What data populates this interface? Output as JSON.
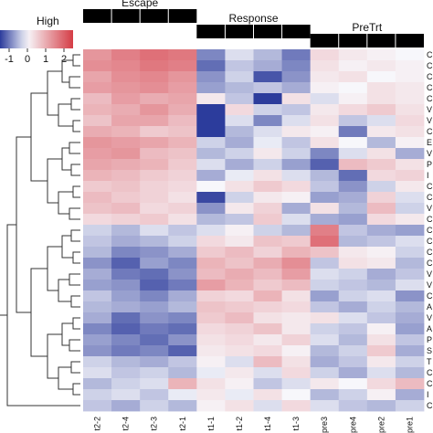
{
  "chart_data": {
    "type": "heatmap",
    "groups": [
      {
        "name": "Escape",
        "columns": [
          "t2-2",
          "t2-4",
          "t2-3",
          "t2-1"
        ]
      },
      {
        "name": "Response",
        "columns": [
          "t1-1",
          "t1-2",
          "t1-4",
          "t1-3"
        ]
      },
      {
        "name": "PreTrt",
        "columns": [
          "pre3",
          "pre4",
          "pre2",
          "pre1"
        ]
      }
    ],
    "columns": [
      "t2-2",
      "t2-4",
      "t2-3",
      "t2-1",
      "t1-1",
      "t1-2",
      "t1-4",
      "t1-3",
      "pre3",
      "pre4",
      "pre2",
      "pre1"
    ],
    "row_labels": [
      "C",
      "C",
      "C",
      "C",
      "C",
      "V",
      "V",
      "C",
      "E",
      "V",
      "P",
      "I",
      "C",
      "C",
      "V",
      "C",
      "C",
      "C",
      "C",
      "C",
      "V",
      "V",
      "C",
      "A",
      "V",
      "A",
      "P",
      "S",
      "T",
      "C",
      "C",
      "I",
      "C"
    ],
    "legend": {
      "low_label": "",
      "high_label": "High",
      "ticks": [
        "-1",
        "0",
        "1",
        "2"
      ],
      "range": [
        -1.5,
        2.5
      ],
      "colors": {
        "low": "#2c3c9c",
        "mid": "#f7f7fb",
        "high": "#d53c45"
      }
    },
    "values": [
      [
        1.3,
        1.6,
        1.8,
        1.7,
        -0.9,
        -0.2,
        -0.5,
        -1.0,
        0.4,
        0.2,
        0.1,
        0.0
      ],
      [
        1.4,
        1.5,
        1.7,
        1.6,
        -1.1,
        -0.4,
        -0.6,
        -0.9,
        0.3,
        0.1,
        0.2,
        0.1
      ],
      [
        1.1,
        1.4,
        1.5,
        1.3,
        -0.8,
        -0.3,
        -1.3,
        -0.8,
        0.2,
        0.3,
        0.0,
        0.1
      ],
      [
        1.2,
        1.3,
        1.4,
        1.2,
        -0.7,
        -0.5,
        -0.4,
        -0.6,
        0.1,
        0.0,
        0.3,
        0.2
      ],
      [
        0.8,
        1.2,
        1.0,
        1.1,
        0.2,
        -0.4,
        -1.8,
        0.3,
        -0.2,
        0.1,
        0.3,
        0.2
      ],
      [
        0.9,
        1.0,
        1.3,
        1.0,
        -1.7,
        0.4,
        -0.3,
        -0.4,
        0.2,
        0.4,
        0.6,
        0.3
      ],
      [
        0.7,
        1.1,
        1.1,
        0.8,
        -2.1,
        -0.2,
        -0.9,
        -0.2,
        0.3,
        -0.4,
        -0.2,
        0.4
      ],
      [
        1.0,
        0.9,
        0.6,
        0.7,
        -1.9,
        -0.5,
        -0.2,
        0.2,
        0.1,
        -1.0,
        0.2,
        0.3
      ],
      [
        1.3,
        1.2,
        1.1,
        0.9,
        -0.3,
        -0.6,
        -0.1,
        -0.4,
        0.3,
        0.0,
        -0.5,
        0.1
      ],
      [
        1.2,
        1.3,
        0.8,
        0.7,
        -0.5,
        -0.3,
        0.2,
        -0.3,
        -0.9,
        -0.2,
        0.3,
        -0.6
      ],
      [
        1.1,
        1.0,
        0.9,
        0.6,
        -0.2,
        -0.6,
        -0.3,
        -0.7,
        -1.2,
        0.8,
        0.6,
        0.3
      ],
      [
        0.9,
        0.8,
        0.6,
        0.5,
        -0.6,
        -0.1,
        0.3,
        -0.2,
        -0.5,
        -1.1,
        0.4,
        0.5
      ],
      [
        0.6,
        0.7,
        0.5,
        0.4,
        0.0,
        0.3,
        0.6,
        0.4,
        -0.4,
        -0.8,
        -0.3,
        0.2
      ],
      [
        0.8,
        0.6,
        0.5,
        0.3,
        -1.4,
        -0.3,
        0.2,
        0.1,
        -0.7,
        -0.6,
        0.5,
        -0.2
      ],
      [
        0.7,
        0.8,
        0.4,
        0.5,
        -0.8,
        0.2,
        0.5,
        -0.6,
        0.3,
        -0.5,
        0.8,
        -0.3
      ],
      [
        0.4,
        0.5,
        0.6,
        0.3,
        -0.5,
        -0.4,
        0.6,
        -0.2,
        -0.6,
        -0.7,
        0.4,
        0.2
      ],
      [
        -0.3,
        -0.5,
        -0.2,
        -0.4,
        -0.2,
        0.1,
        -0.3,
        -0.5,
        1.6,
        -0.4,
        -0.6,
        -0.7
      ],
      [
        -0.4,
        -0.6,
        -0.5,
        -0.3,
        0.4,
        0.2,
        0.7,
        0.6,
        1.8,
        -0.5,
        -0.4,
        -0.2
      ],
      [
        -0.5,
        -0.9,
        -0.8,
        -0.6,
        0.6,
        0.8,
        0.5,
        0.9,
        0.7,
        0.2,
        0.1,
        -0.3
      ],
      [
        -0.8,
        -1.2,
        -0.7,
        -0.9,
        0.9,
        0.7,
        1.0,
        1.4,
        -0.4,
        0.3,
        0.2,
        -0.5
      ],
      [
        -0.6,
        -1.0,
        -1.1,
        -0.8,
        0.8,
        1.0,
        0.8,
        1.2,
        -0.2,
        -0.3,
        -0.6,
        -0.4
      ],
      [
        -0.7,
        -0.8,
        -1.2,
        -1.0,
        1.2,
        0.9,
        0.6,
        0.8,
        -0.3,
        -0.4,
        -0.5,
        -0.2
      ],
      [
        -0.4,
        -0.7,
        -0.9,
        -0.6,
        0.5,
        0.4,
        0.9,
        0.3,
        -0.7,
        -0.3,
        -0.2,
        -0.8
      ],
      [
        -0.5,
        -0.6,
        -0.7,
        -0.5,
        0.7,
        0.6,
        0.5,
        0.4,
        -0.4,
        -0.6,
        -0.3,
        -0.5
      ],
      [
        -0.6,
        -1.1,
        -0.8,
        -0.9,
        0.6,
        0.8,
        0.3,
        0.2,
        0.3,
        -0.2,
        -0.4,
        -0.6
      ],
      [
        -0.9,
        -1.2,
        -1.0,
        -1.1,
        0.4,
        0.5,
        0.7,
        0.2,
        -0.3,
        -0.4,
        0.1,
        -0.7
      ],
      [
        -0.7,
        -0.9,
        -1.1,
        -0.8,
        0.3,
        0.4,
        0.2,
        0.5,
        -0.2,
        -0.5,
        0.3,
        -0.4
      ],
      [
        -0.8,
        -1.0,
        -0.9,
        -1.2,
        0.2,
        0.3,
        0.4,
        0.1,
        -0.5,
        -0.3,
        0.6,
        -0.6
      ],
      [
        -0.3,
        -0.5,
        -0.6,
        -0.4,
        0.1,
        -0.2,
        0.8,
        0.3,
        -0.6,
        -0.4,
        0.2,
        -0.3
      ],
      [
        -0.2,
        -0.4,
        -0.3,
        -0.5,
        -0.1,
        0.2,
        -0.2,
        0.4,
        -0.3,
        -0.6,
        -0.2,
        -0.5
      ],
      [
        -0.5,
        -0.3,
        -0.2,
        0.9,
        0.3,
        0.1,
        -0.4,
        -0.2,
        0.2,
        0.0,
        0.4,
        0.8
      ],
      [
        -0.3,
        -0.2,
        -0.4,
        -0.1,
        0.2,
        -0.1,
        0.3,
        0.0,
        -0.5,
        -0.3,
        0.1,
        -0.6
      ],
      [
        -0.4,
        -0.6,
        -0.3,
        -0.5,
        0.1,
        0.3,
        -0.2,
        0.4,
        -0.2,
        -0.4,
        -0.5,
        -0.3
      ]
    ]
  }
}
